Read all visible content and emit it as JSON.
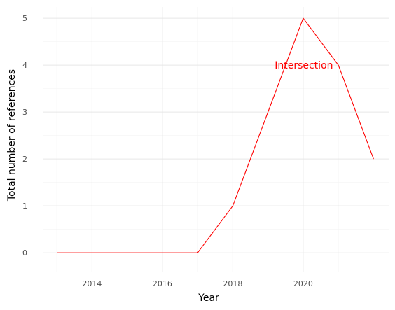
{
  "chart_data": {
    "type": "line",
    "title": "",
    "xlabel": "Year",
    "ylabel": "Total number of references",
    "x": [
      2013,
      2014,
      2015,
      2016,
      2017,
      2018,
      2019,
      2020,
      2021,
      2022
    ],
    "series": [
      {
        "values": [
          0,
          0,
          0,
          0,
          0,
          1,
          3,
          5,
          4,
          2
        ],
        "color": "#ff0000"
      }
    ],
    "xticks": [
      2014,
      2016,
      2018,
      2020
    ],
    "xtick_labels": [
      "2014",
      "2016",
      "2018",
      "2020"
    ],
    "yticks": [
      0,
      1,
      2,
      3,
      4,
      5
    ],
    "ytick_labels": [
      "0",
      "1",
      "2",
      "3",
      "4",
      "5"
    ],
    "xlim": [
      2012.6,
      2022.45
    ],
    "ylim": [
      -0.4,
      5.24
    ],
    "grid": true,
    "annotations": [
      {
        "text": "Intersection",
        "x": 2020,
        "y": 4,
        "color": "#ff0000"
      }
    ]
  }
}
